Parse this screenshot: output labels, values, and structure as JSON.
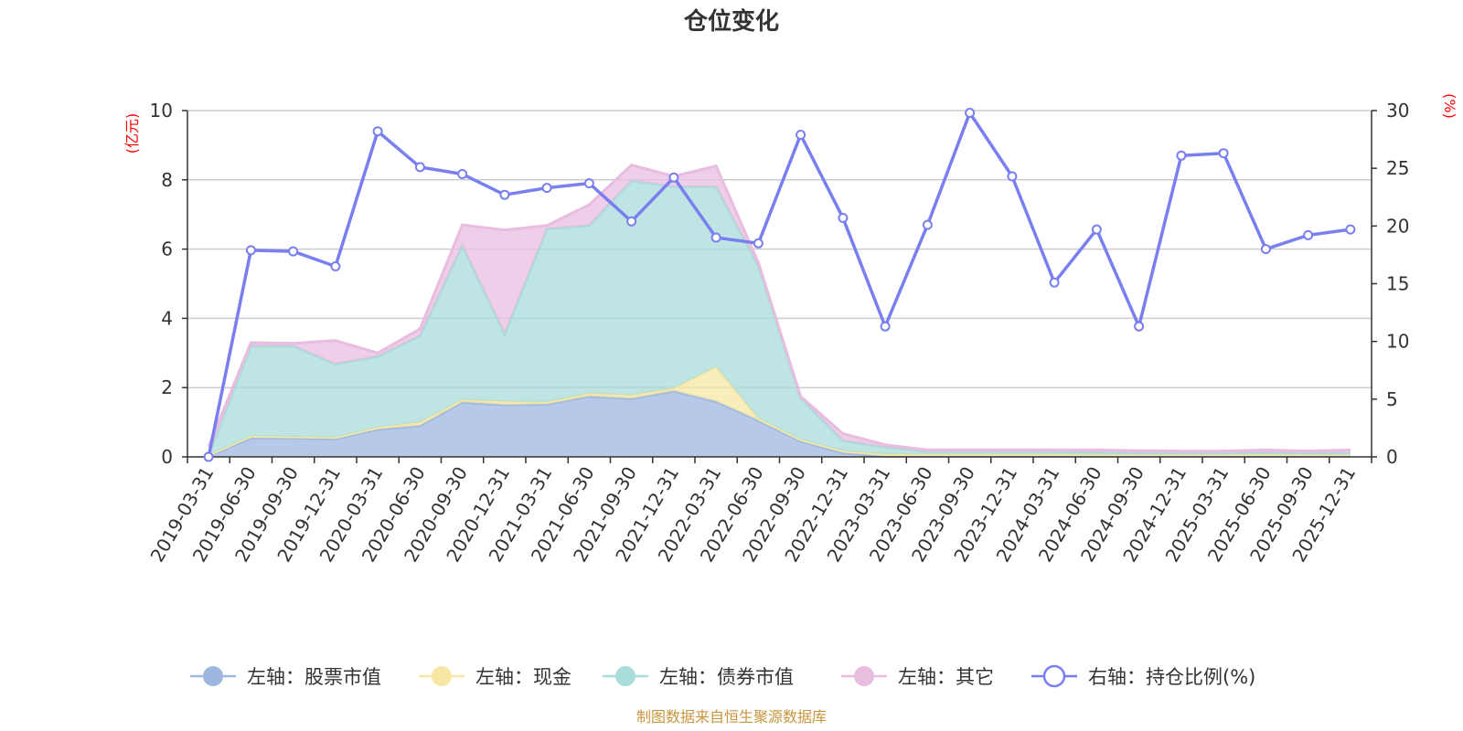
{
  "chart_data": {
    "type": "area",
    "title": "仓位变化",
    "left_axis_unit": "(亿元)",
    "right_axis_unit": "(%)",
    "ylim_left": [
      0,
      10
    ],
    "ylim_right": [
      0,
      30
    ],
    "left_ticks": [
      "0",
      "2",
      "4",
      "6",
      "8",
      "10"
    ],
    "right_ticks": [
      "0",
      "5",
      "10",
      "15",
      "20",
      "25",
      "30"
    ],
    "categories": [
      "2019-03-31",
      "2019-06-30",
      "2019-09-30",
      "2019-12-31",
      "2020-03-31",
      "2020-06-30",
      "2020-09-30",
      "2020-12-31",
      "2021-03-31",
      "2021-06-30",
      "2021-09-30",
      "2021-12-31",
      "2022-03-31",
      "2022-06-30",
      "2022-09-30",
      "2022-12-31",
      "2023-03-31",
      "2023-06-30",
      "2023-09-30",
      "2023-12-31",
      "2024-03-31",
      "2024-06-30",
      "2024-09-30",
      "2024-12-31",
      "2025-03-31",
      "2025-06-30",
      "2025-09-30",
      "2025-12-31"
    ],
    "series": [
      {
        "name": "左轴：股票市值",
        "axis": "left",
        "kind": "stacked-area",
        "color": "#9db7e0",
        "values": [
          0.02,
          0.55,
          0.55,
          0.52,
          0.8,
          0.9,
          1.58,
          1.5,
          1.52,
          1.75,
          1.68,
          1.9,
          1.6,
          1.05,
          0.45,
          0.12,
          0.02,
          0.02,
          0.02,
          0.02,
          0.02,
          0.02,
          0.02,
          0.02,
          0.02,
          0.02,
          0.02,
          0.02
        ]
      },
      {
        "name": "左轴：现金",
        "axis": "left",
        "kind": "stacked-area",
        "color": "#f7e7a5",
        "values": [
          0.03,
          0.05,
          0.03,
          0.04,
          0.05,
          0.1,
          0.07,
          0.1,
          0.06,
          0.08,
          0.1,
          0.08,
          1.0,
          0.06,
          0.05,
          0.05,
          0.06,
          0.05,
          0.05,
          0.05,
          0.05,
          0.04,
          0.04,
          0.04,
          0.04,
          0.05,
          0.04,
          0.04
        ]
      },
      {
        "name": "左轴：债券市值",
        "axis": "left",
        "kind": "stacked-area",
        "color": "#a8dcd9",
        "values": [
          0.0,
          2.6,
          2.62,
          2.12,
          2.05,
          2.5,
          4.45,
          1.95,
          5.0,
          4.85,
          6.2,
          5.82,
          5.2,
          4.4,
          1.2,
          0.3,
          0.2,
          0.08,
          0.08,
          0.08,
          0.08,
          0.08,
          0.06,
          0.06,
          0.06,
          0.06,
          0.06,
          0.06
        ]
      },
      {
        "name": "左轴：其它",
        "axis": "left",
        "kind": "stacked-area",
        "color": "#e8bde0",
        "values": [
          0.25,
          0.1,
          0.08,
          0.68,
          0.1,
          0.2,
          0.6,
          3.0,
          0.1,
          0.6,
          0.45,
          0.3,
          0.6,
          0.1,
          0.05,
          0.2,
          0.07,
          0.05,
          0.05,
          0.05,
          0.05,
          0.06,
          0.06,
          0.05,
          0.05,
          0.07,
          0.05,
          0.08
        ]
      },
      {
        "name": "右轴：持仓比例(%)",
        "axis": "right",
        "kind": "line",
        "color": "#7a7ff0",
        "values": [
          0,
          17.9,
          17.8,
          16.5,
          28.2,
          25.1,
          24.5,
          22.7,
          23.3,
          23.7,
          20.4,
          24.2,
          19.0,
          18.5,
          27.9,
          20.7,
          11.3,
          20.1,
          29.8,
          24.3,
          15.1,
          19.7,
          11.3,
          26.1,
          26.3,
          18.0,
          19.2,
          19.7
        ]
      }
    ]
  },
  "source_note": "制图数据来自恒生聚源数据库"
}
